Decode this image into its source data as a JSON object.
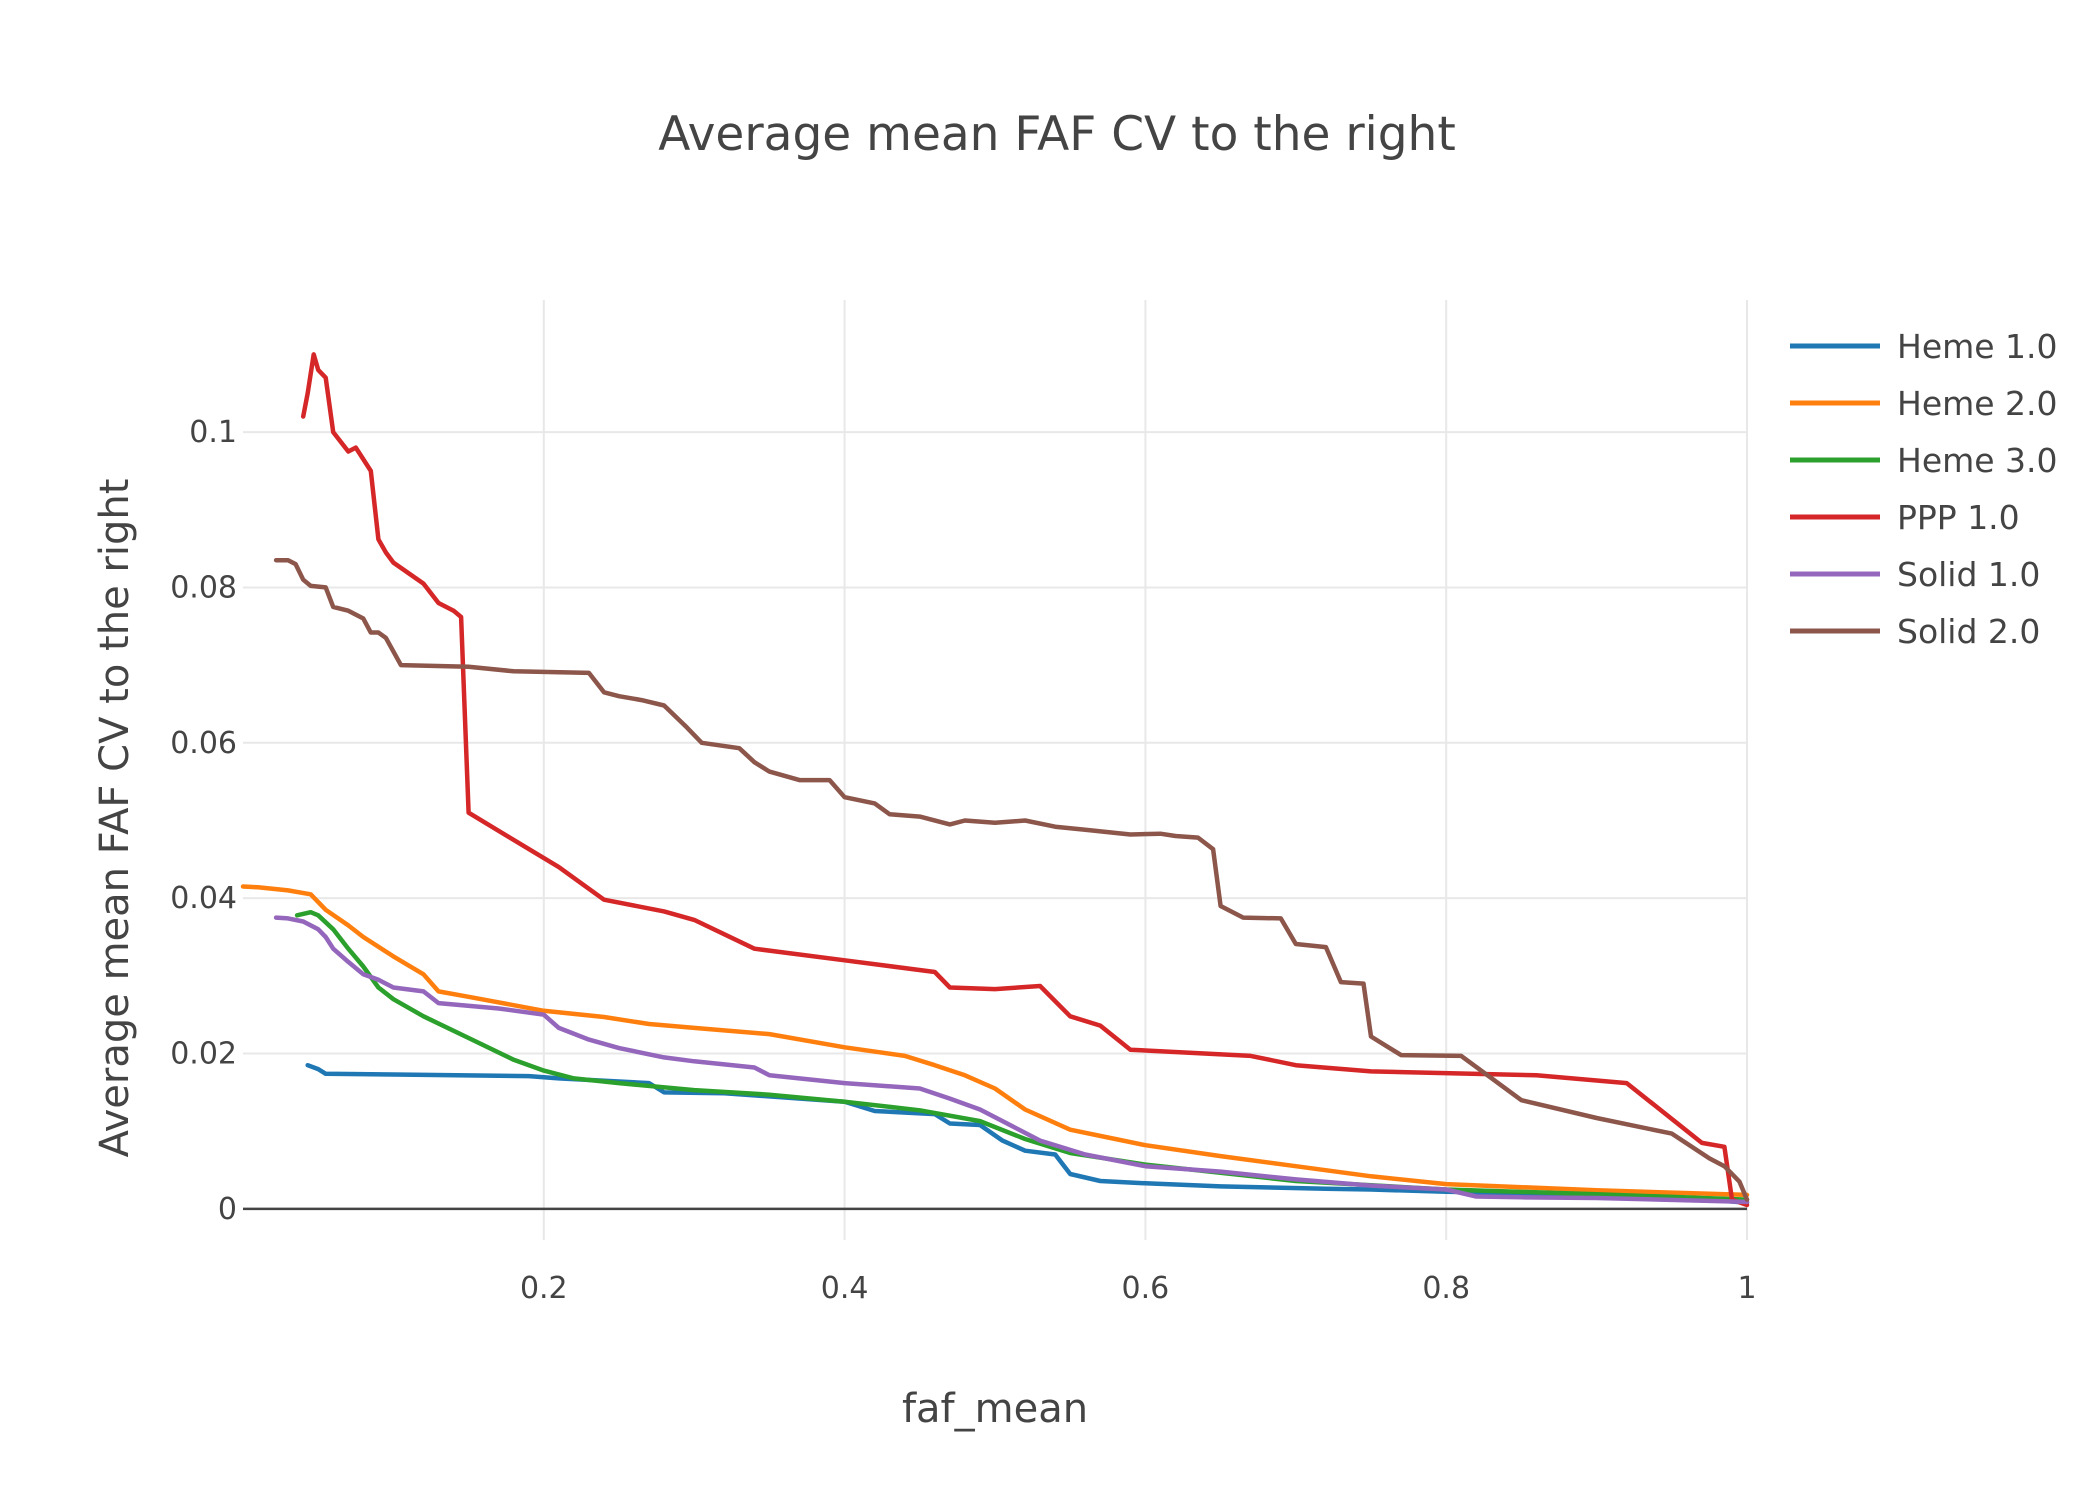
{
  "chart_data": {
    "type": "line",
    "title": "Average mean FAF CV to the right",
    "xlabel": "faf_mean",
    "ylabel": "Average mean FAF CV to the right",
    "xlim": [
      0,
      1
    ],
    "ylim": [
      -0.004,
      0.117
    ],
    "x_ticks": [
      {
        "value": 0.2,
        "label": "0.2"
      },
      {
        "value": 0.4,
        "label": "0.4"
      },
      {
        "value": 0.6,
        "label": "0.6"
      },
      {
        "value": 0.8,
        "label": "0.8"
      },
      {
        "value": 1.0,
        "label": "1"
      }
    ],
    "y_ticks": [
      {
        "value": 0,
        "label": "0"
      },
      {
        "value": 0.02,
        "label": "0.02"
      },
      {
        "value": 0.04,
        "label": "0.04"
      },
      {
        "value": 0.06,
        "label": "0.06"
      },
      {
        "value": 0.08,
        "label": "0.08"
      },
      {
        "value": 0.1,
        "label": "0.1"
      }
    ],
    "grid": true,
    "legend_position": "top-right",
    "series": [
      {
        "name": "Heme 1.0",
        "color": "#1f77b4",
        "points": [
          [
            0.043,
            0.0185
          ],
          [
            0.05,
            0.018
          ],
          [
            0.055,
            0.0174
          ],
          [
            0.1,
            0.0173
          ],
          [
            0.19,
            0.0171
          ],
          [
            0.21,
            0.0168
          ],
          [
            0.27,
            0.0162
          ],
          [
            0.28,
            0.015
          ],
          [
            0.32,
            0.0149
          ],
          [
            0.4,
            0.0138
          ],
          [
            0.42,
            0.0126
          ],
          [
            0.46,
            0.0122
          ],
          [
            0.47,
            0.011
          ],
          [
            0.49,
            0.0108
          ],
          [
            0.505,
            0.0088
          ],
          [
            0.52,
            0.0075
          ],
          [
            0.54,
            0.007
          ],
          [
            0.55,
            0.0045
          ],
          [
            0.57,
            0.0036
          ],
          [
            0.6,
            0.0033
          ],
          [
            0.65,
            0.0029
          ],
          [
            0.72,
            0.0026
          ],
          [
            0.75,
            0.0025
          ],
          [
            0.8,
            0.0022
          ],
          [
            0.9,
            0.0018
          ],
          [
            0.95,
            0.0016
          ],
          [
            1.0,
            0.0008
          ]
        ]
      },
      {
        "name": "Heme 2.0",
        "color": "#ff7f0e",
        "points": [
          [
            0.0,
            0.0415
          ],
          [
            0.01,
            0.0414
          ],
          [
            0.03,
            0.041
          ],
          [
            0.045,
            0.0405
          ],
          [
            0.055,
            0.0385
          ],
          [
            0.07,
            0.0365
          ],
          [
            0.08,
            0.035
          ],
          [
            0.1,
            0.0325
          ],
          [
            0.12,
            0.0302
          ],
          [
            0.13,
            0.028
          ],
          [
            0.15,
            0.0273
          ],
          [
            0.2,
            0.0255
          ],
          [
            0.24,
            0.0247
          ],
          [
            0.27,
            0.0238
          ],
          [
            0.3,
            0.0233
          ],
          [
            0.35,
            0.0225
          ],
          [
            0.4,
            0.0208
          ],
          [
            0.44,
            0.0197
          ],
          [
            0.46,
            0.0185
          ],
          [
            0.48,
            0.0172
          ],
          [
            0.5,
            0.0155
          ],
          [
            0.52,
            0.0128
          ],
          [
            0.55,
            0.0102
          ],
          [
            0.58,
            0.009
          ],
          [
            0.6,
            0.0082
          ],
          [
            0.65,
            0.0068
          ],
          [
            0.7,
            0.0055
          ],
          [
            0.75,
            0.0042
          ],
          [
            0.8,
            0.0032
          ],
          [
            0.9,
            0.0024
          ],
          [
            1.0,
            0.0018
          ]
        ]
      },
      {
        "name": "Heme 3.0",
        "color": "#2ca02c",
        "points": [
          [
            0.036,
            0.0378
          ],
          [
            0.045,
            0.0382
          ],
          [
            0.05,
            0.0378
          ],
          [
            0.06,
            0.036
          ],
          [
            0.07,
            0.0335
          ],
          [
            0.08,
            0.0312
          ],
          [
            0.09,
            0.0285
          ],
          [
            0.1,
            0.027
          ],
          [
            0.12,
            0.0248
          ],
          [
            0.15,
            0.022
          ],
          [
            0.18,
            0.0192
          ],
          [
            0.2,
            0.0178
          ],
          [
            0.22,
            0.0168
          ],
          [
            0.25,
            0.0162
          ],
          [
            0.3,
            0.0153
          ],
          [
            0.35,
            0.0147
          ],
          [
            0.4,
            0.0138
          ],
          [
            0.45,
            0.0127
          ],
          [
            0.49,
            0.0113
          ],
          [
            0.52,
            0.009
          ],
          [
            0.55,
            0.0072
          ],
          [
            0.6,
            0.0057
          ],
          [
            0.7,
            0.0036
          ],
          [
            0.8,
            0.0025
          ],
          [
            0.9,
            0.0019
          ],
          [
            1.0,
            0.0012
          ]
        ]
      },
      {
        "name": "PPP 1.0",
        "color": "#d62728",
        "points": [
          [
            0.04,
            0.102
          ],
          [
            0.043,
            0.105
          ],
          [
            0.047,
            0.11
          ],
          [
            0.05,
            0.108
          ],
          [
            0.055,
            0.107
          ],
          [
            0.06,
            0.1
          ],
          [
            0.07,
            0.0975
          ],
          [
            0.075,
            0.098
          ],
          [
            0.085,
            0.095
          ],
          [
            0.09,
            0.0862
          ],
          [
            0.095,
            0.0845
          ],
          [
            0.1,
            0.0832
          ],
          [
            0.12,
            0.0805
          ],
          [
            0.13,
            0.078
          ],
          [
            0.14,
            0.077
          ],
          [
            0.145,
            0.0762
          ],
          [
            0.15,
            0.051
          ],
          [
            0.18,
            0.0475
          ],
          [
            0.21,
            0.044
          ],
          [
            0.24,
            0.0398
          ],
          [
            0.28,
            0.0383
          ],
          [
            0.3,
            0.0372
          ],
          [
            0.34,
            0.0335
          ],
          [
            0.4,
            0.032
          ],
          [
            0.46,
            0.0305
          ],
          [
            0.47,
            0.0285
          ],
          [
            0.5,
            0.0283
          ],
          [
            0.53,
            0.0287
          ],
          [
            0.55,
            0.0248
          ],
          [
            0.57,
            0.0236
          ],
          [
            0.59,
            0.0205
          ],
          [
            0.67,
            0.0197
          ],
          [
            0.7,
            0.0185
          ],
          [
            0.75,
            0.0177
          ],
          [
            0.86,
            0.0172
          ],
          [
            0.92,
            0.0162
          ],
          [
            0.97,
            0.0085
          ],
          [
            0.985,
            0.008
          ],
          [
            0.99,
            0.0012
          ],
          [
            1.0,
            0.0005
          ]
        ]
      },
      {
        "name": "Solid 1.0",
        "color": "#9467bd",
        "points": [
          [
            0.022,
            0.0375
          ],
          [
            0.03,
            0.0374
          ],
          [
            0.04,
            0.037
          ],
          [
            0.05,
            0.036
          ],
          [
            0.055,
            0.035
          ],
          [
            0.06,
            0.0335
          ],
          [
            0.07,
            0.0318
          ],
          [
            0.08,
            0.0302
          ],
          [
            0.09,
            0.0295
          ],
          [
            0.1,
            0.0285
          ],
          [
            0.12,
            0.028
          ],
          [
            0.13,
            0.0265
          ],
          [
            0.17,
            0.0258
          ],
          [
            0.2,
            0.025
          ],
          [
            0.21,
            0.0233
          ],
          [
            0.23,
            0.0218
          ],
          [
            0.25,
            0.0207
          ],
          [
            0.28,
            0.0195
          ],
          [
            0.3,
            0.019
          ],
          [
            0.34,
            0.0182
          ],
          [
            0.35,
            0.0172
          ],
          [
            0.4,
            0.0162
          ],
          [
            0.45,
            0.0155
          ],
          [
            0.47,
            0.0142
          ],
          [
            0.49,
            0.0128
          ],
          [
            0.51,
            0.0108
          ],
          [
            0.53,
            0.0088
          ],
          [
            0.56,
            0.007
          ],
          [
            0.6,
            0.0055
          ],
          [
            0.65,
            0.0048
          ],
          [
            0.7,
            0.0038
          ],
          [
            0.75,
            0.003
          ],
          [
            0.8,
            0.0025
          ],
          [
            0.82,
            0.0016
          ],
          [
            0.85,
            0.0015
          ],
          [
            0.9,
            0.0014
          ],
          [
            1.0,
            0.0009
          ]
        ]
      },
      {
        "name": "Solid 2.0",
        "color": "#8c564b",
        "points": [
          [
            0.022,
            0.0835
          ],
          [
            0.03,
            0.0835
          ],
          [
            0.035,
            0.083
          ],
          [
            0.04,
            0.081
          ],
          [
            0.045,
            0.0802
          ],
          [
            0.055,
            0.08
          ],
          [
            0.06,
            0.0775
          ],
          [
            0.07,
            0.077
          ],
          [
            0.08,
            0.076
          ],
          [
            0.085,
            0.0742
          ],
          [
            0.09,
            0.0742
          ],
          [
            0.095,
            0.0735
          ],
          [
            0.105,
            0.07
          ],
          [
            0.15,
            0.0698
          ],
          [
            0.18,
            0.0692
          ],
          [
            0.23,
            0.069
          ],
          [
            0.24,
            0.0665
          ],
          [
            0.25,
            0.066
          ],
          [
            0.265,
            0.0655
          ],
          [
            0.28,
            0.0648
          ],
          [
            0.295,
            0.062
          ],
          [
            0.305,
            0.06
          ],
          [
            0.33,
            0.0593
          ],
          [
            0.34,
            0.0575
          ],
          [
            0.35,
            0.0563
          ],
          [
            0.37,
            0.0552
          ],
          [
            0.39,
            0.0552
          ],
          [
            0.4,
            0.053
          ],
          [
            0.42,
            0.0522
          ],
          [
            0.43,
            0.0508
          ],
          [
            0.45,
            0.0505
          ],
          [
            0.47,
            0.0495
          ],
          [
            0.48,
            0.05
          ],
          [
            0.5,
            0.0497
          ],
          [
            0.52,
            0.05
          ],
          [
            0.54,
            0.0492
          ],
          [
            0.56,
            0.0488
          ],
          [
            0.59,
            0.0482
          ],
          [
            0.61,
            0.0483
          ],
          [
            0.62,
            0.048
          ],
          [
            0.635,
            0.0478
          ],
          [
            0.645,
            0.0463
          ],
          [
            0.65,
            0.039
          ],
          [
            0.665,
            0.0375
          ],
          [
            0.69,
            0.0374
          ],
          [
            0.7,
            0.0341
          ],
          [
            0.72,
            0.0337
          ],
          [
            0.73,
            0.0292
          ],
          [
            0.745,
            0.029
          ],
          [
            0.75,
            0.0222
          ],
          [
            0.76,
            0.021
          ],
          [
            0.77,
            0.0198
          ],
          [
            0.81,
            0.0197
          ],
          [
            0.85,
            0.014
          ],
          [
            0.9,
            0.0117
          ],
          [
            0.95,
            0.0097
          ],
          [
            0.975,
            0.0065
          ],
          [
            0.985,
            0.0055
          ],
          [
            0.995,
            0.0035
          ],
          [
            1.0,
            0.0012
          ]
        ]
      }
    ]
  }
}
